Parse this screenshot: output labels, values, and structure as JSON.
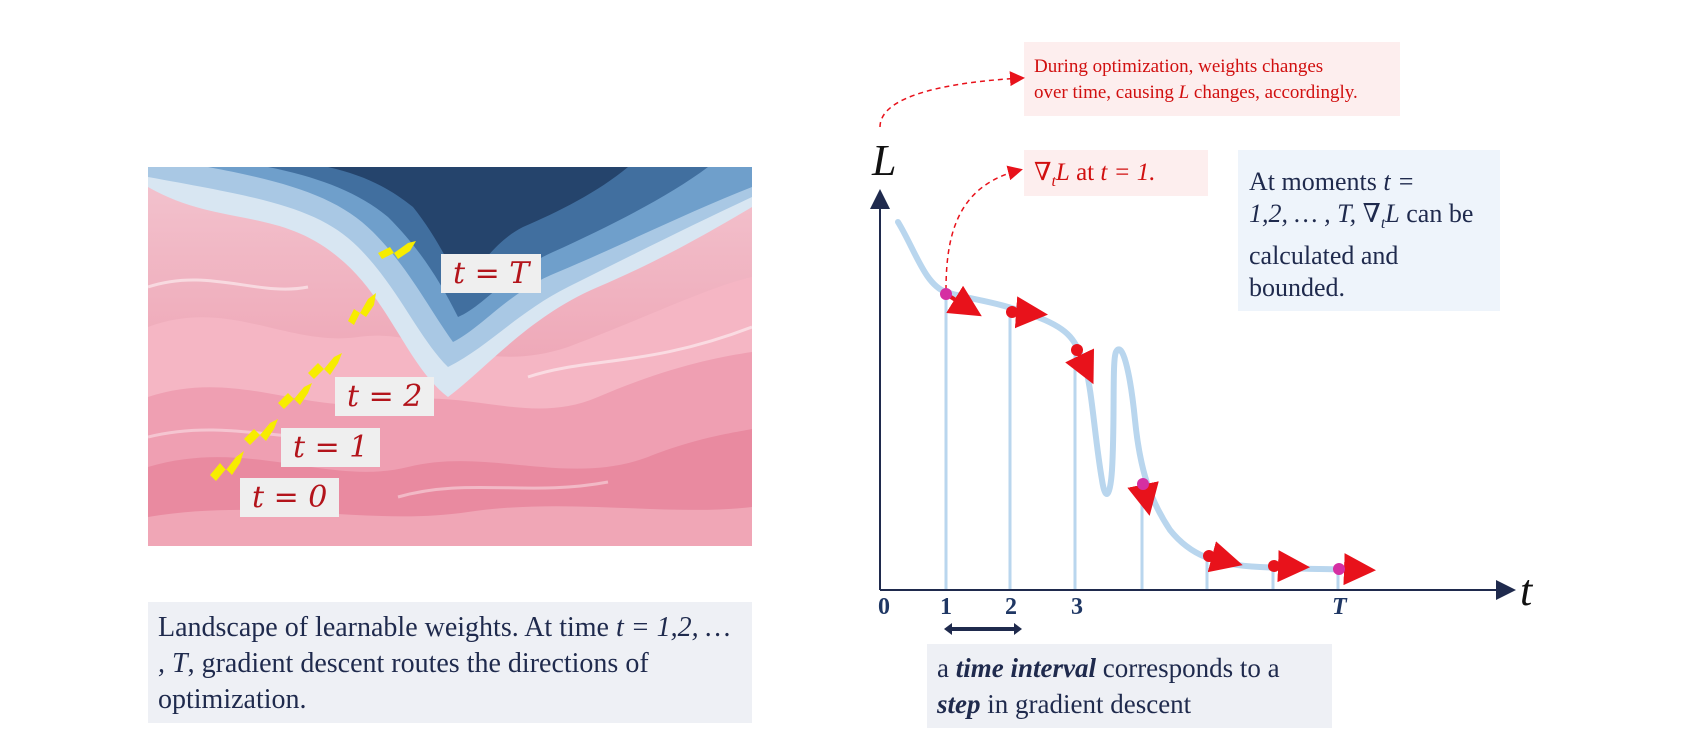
{
  "landscape": {
    "labels": [
      "t = 0",
      "t = 1",
      "t = 2",
      "t = T"
    ],
    "caption_part1": "Landscape of learnable weights. At time",
    "caption_math1": "t =",
    "caption_math2": "1,2, … , T",
    "caption_part2": ", gradient descent  routes the directions of optimization."
  },
  "notes": {
    "optimization_line1": "During optimization, weights changes",
    "optimization_line2a": "over time, causing",
    "optimization_L": "L",
    "optimization_line2b": "changes, accordingly.",
    "gradient_note_math": "∇",
    "gradient_note_sub": "t",
    "gradient_note_L": "L",
    "gradient_note_rest": " at ",
    "gradient_note_eq": "t = 1."
  },
  "moments_box": {
    "line1a": "At moments",
    "line1b": "t =",
    "line2a": "1,2, … , T, ∇",
    "line2sub": "t",
    "line2b": "L",
    "line2c": " can be",
    "line3": "calculated and",
    "line4": "bounded."
  },
  "plot": {
    "y_axis_label": "L",
    "x_axis_label": "t",
    "ticks": [
      "0",
      "1",
      "2",
      "3",
      "T"
    ]
  },
  "interval_caption": {
    "p1": "a ",
    "bold1": "time interval",
    "p2": " corresponds to a",
    "bold2": "step",
    "p3": " in gradient descent"
  },
  "colors": {
    "curve": "#b9d6ee",
    "arrow": "#e8121b",
    "dot": "#d52fa2",
    "axis": "#1f2a4d",
    "arrow_yellow": "#f7ec00"
  }
}
